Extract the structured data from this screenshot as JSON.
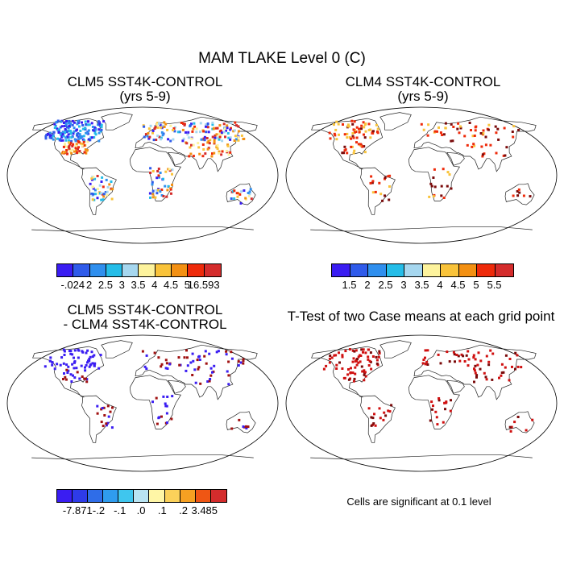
{
  "title": "MAM TLAKE Level 0 (C)",
  "colors": {
    "coast": "#222222",
    "land_outline": "#333333",
    "frame": "#000000"
  },
  "panels": [
    {
      "id": "clm5",
      "title_line1": "CLM5 SST4K-CONTROL",
      "title_line2": "(yrs 5-9)",
      "palette": [
        "#3a1df2",
        "#2f5bea",
        "#2f8fee",
        "#25bde8",
        "#a6d7ef",
        "#fdf39d",
        "#f9c33a",
        "#f39012",
        "#ee2a0a",
        "#d42c2c"
      ],
      "labels": [
        "-.024",
        "2",
        "2.5",
        "3",
        "3.5",
        "4",
        "4.5",
        "5",
        "16.593"
      ]
    },
    {
      "id": "clm4",
      "title_line1": "CLM4 SST4K-CONTROL",
      "title_line2": "(yrs 5-9)",
      "palette": [
        "#3a1df2",
        "#2f5bea",
        "#2f8fee",
        "#25bde8",
        "#a6d7ef",
        "#fdf39d",
        "#f9c33a",
        "#f39012",
        "#ee2a0a",
        "#d42c2c"
      ],
      "labels": [
        "1.5",
        "2",
        "2.5",
        "3",
        "3.5",
        "4",
        "4.5",
        "5",
        "5.5"
      ]
    },
    {
      "id": "diff",
      "title_line1": "CLM5 SST4K-CONTROL",
      "title_line2": "- CLM4 SST4K-CONTROL",
      "palette": [
        "#3a1df2",
        "#2e3be8",
        "#2f6de8",
        "#2f9cee",
        "#3fc6ee",
        "#b9e4f2",
        "#fff6a6",
        "#fbd15a",
        "#f6a022",
        "#ef5614",
        "#d42c2c"
      ],
      "labels": [
        "-7.871",
        "-.2",
        "-.1",
        ".0",
        ".1",
        ".2",
        "3.485"
      ]
    },
    {
      "id": "ttest",
      "title_line1": "T-Test of two Case means at each grid point",
      "note": "Cells are significant at 0.1 level"
    }
  ]
}
